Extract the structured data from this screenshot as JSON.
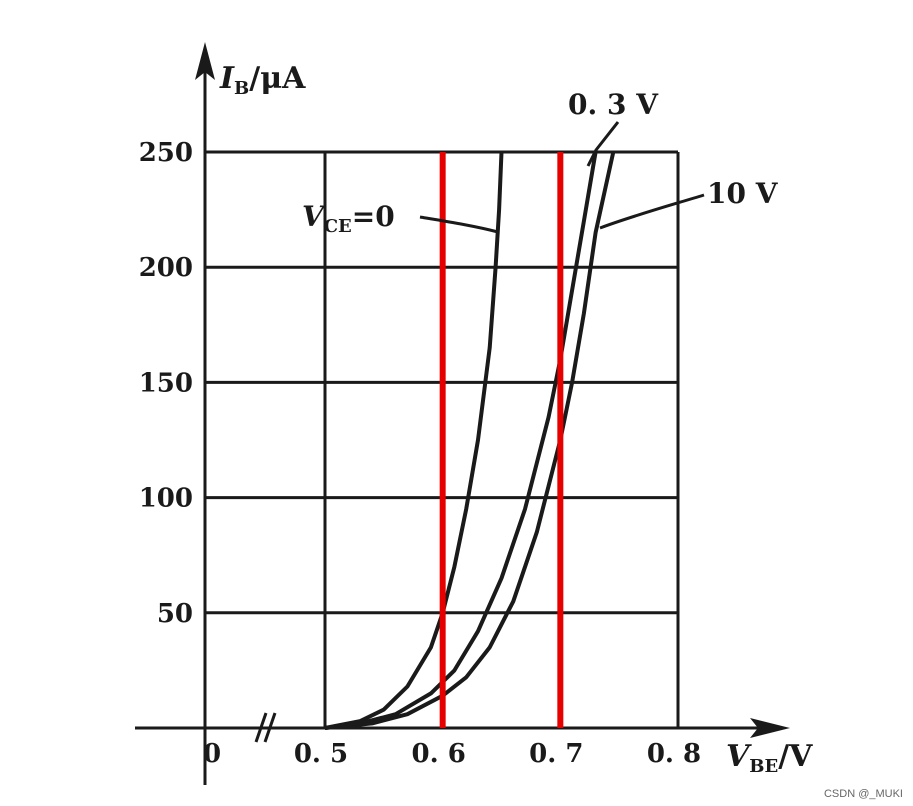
{
  "chart_data": {
    "type": "line",
    "x_axis": {
      "label_main": "V",
      "label_sub": "BE",
      "label_unit": "/V",
      "ticks": [
        "0",
        "0. 5",
        "0. 6",
        "0. 7",
        "0. 8"
      ],
      "tick_values": [
        0.5,
        0.6,
        0.7,
        0.8
      ],
      "range": [
        0.5,
        0.8
      ],
      "break_marker": "//"
    },
    "y_axis": {
      "label_main": "I",
      "label_sub": "B",
      "label_unit": "/μA",
      "ticks": [
        "50",
        "100",
        "150",
        "200",
        "250"
      ],
      "tick_values": [
        50,
        100,
        150,
        200,
        250
      ],
      "range": [
        0,
        250
      ]
    },
    "grid": true,
    "series": [
      {
        "name": "V_CE=0",
        "label_main": "V",
        "label_sub": "CE",
        "label_rest": "=0",
        "x": [
          0.5,
          0.53,
          0.55,
          0.57,
          0.59,
          0.6,
          0.61,
          0.62,
          0.63,
          0.64,
          0.645,
          0.648,
          0.65
        ],
        "y": [
          0,
          3,
          8,
          18,
          35,
          50,
          70,
          95,
          125,
          165,
          200,
          225,
          250
        ]
      },
      {
        "name": "0. 3 V",
        "x": [
          0.5,
          0.53,
          0.56,
          0.59,
          0.61,
          0.63,
          0.65,
          0.67,
          0.69,
          0.7,
          0.71,
          0.72,
          0.73
        ],
        "y": [
          0,
          2,
          6,
          15,
          25,
          42,
          65,
          95,
          135,
          160,
          190,
          220,
          250
        ]
      },
      {
        "name": "10 V",
        "x": [
          0.5,
          0.54,
          0.57,
          0.6,
          0.62,
          0.64,
          0.66,
          0.68,
          0.7,
          0.71,
          0.72,
          0.73,
          0.745
        ],
        "y": [
          0,
          2,
          6,
          14,
          22,
          35,
          55,
          85,
          125,
          150,
          180,
          215,
          250
        ]
      }
    ],
    "reference_lines": [
      {
        "x": 0.6,
        "color": "#e60000"
      },
      {
        "x": 0.7,
        "color": "#e60000"
      }
    ]
  },
  "watermark": "CSDN @_MUKI"
}
